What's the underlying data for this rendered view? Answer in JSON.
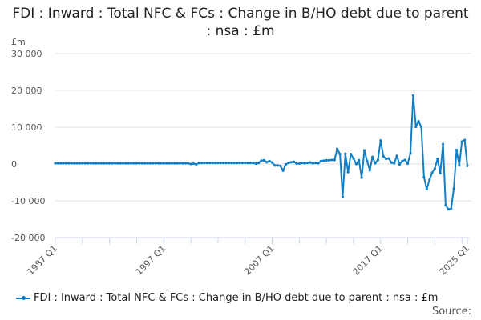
{
  "chart_data": {
    "type": "line",
    "title": "FDI : Inward : Total NFC & FCs : Change in B/HO debt due to parent : nsa : £m",
    "title_lines": [
      "FDI : Inward : Total NFC & FCs : Change in B/HO debt due to parent",
      ": nsa : £m"
    ],
    "ylabel": "£m",
    "ylim": [
      -20000,
      30000
    ],
    "yticks": [
      30000,
      20000,
      10000,
      0,
      -10000,
      -20000
    ],
    "ytick_labels": [
      "30 000",
      "20 000",
      "10 000",
      "0",
      "-10 000",
      "-20 000"
    ],
    "x_start": "1987 Q1",
    "x_end": "2025 Q1",
    "xtick_labels": [
      {
        "label": "1987 Q1",
        "index": 0
      },
      {
        "label": "1997 Q1",
        "index": 40
      },
      {
        "label": "2007 Q1",
        "index": 80
      },
      {
        "label": "2017 Q1",
        "index": 120
      },
      {
        "label": "2025 Q1",
        "index": 152
      }
    ],
    "grid": true,
    "legend": "bottom",
    "series": [
      {
        "name": "FDI : Inward : Total NFC & FCs : Change in B/HO debt due to parent : nsa : £m",
        "color": "#0f7ec4",
        "values": [
          200,
          200,
          200,
          200,
          200,
          200,
          200,
          200,
          200,
          200,
          200,
          200,
          200,
          200,
          200,
          200,
          200,
          200,
          200,
          200,
          200,
          200,
          200,
          200,
          200,
          200,
          200,
          200,
          200,
          200,
          200,
          200,
          200,
          200,
          200,
          200,
          200,
          200,
          200,
          200,
          200,
          200,
          200,
          200,
          200,
          200,
          200,
          200,
          200,
          200,
          0,
          100,
          -100,
          300,
          300,
          300,
          300,
          300,
          300,
          300,
          300,
          300,
          300,
          300,
          300,
          300,
          300,
          300,
          300,
          300,
          300,
          300,
          300,
          300,
          100,
          300,
          900,
          1000,
          500,
          800,
          400,
          -400,
          -400,
          -500,
          -1800,
          -100,
          300,
          500,
          600,
          100,
          100,
          300,
          200,
          300,
          400,
          200,
          300,
          200,
          800,
          900,
          1000,
          1000,
          1100,
          1100,
          4100,
          2700,
          -8900,
          2800,
          -2200,
          2700,
          1500,
          0,
          1000,
          -3700,
          3700,
          800,
          -1700,
          1900,
          200,
          1100,
          6400,
          2100,
          1400,
          1500,
          400,
          200,
          2200,
          -100,
          800,
          1100,
          100,
          3000,
          18600,
          10100,
          11600,
          10100,
          -3600,
          -6800,
          -4300,
          -2400,
          -1200,
          1400,
          -2500,
          5400,
          -11200,
          -12300,
          -12100,
          -6700,
          3800,
          -400,
          6100,
          6500,
          -500
        ]
      }
    ]
  },
  "source_label": "Source:"
}
